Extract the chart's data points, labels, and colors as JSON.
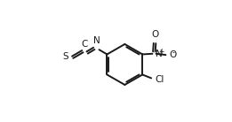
{
  "background_color": "#ffffff",
  "line_color": "#1a1a1a",
  "line_width": 1.4,
  "dbo": 0.012,
  "figsize": [
    2.61,
    1.38
  ],
  "dpi": 100,
  "xlim": [
    -0.05,
    1.05
  ],
  "ylim": [
    -0.02,
    1.02
  ]
}
